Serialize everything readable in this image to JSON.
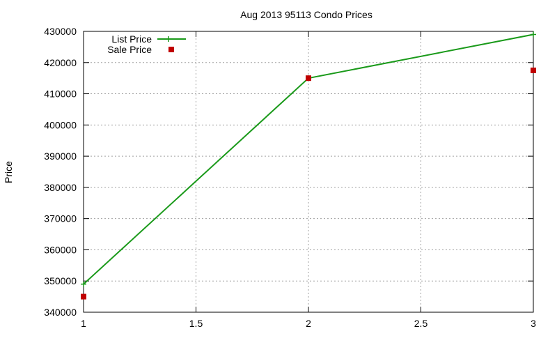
{
  "chart_data": {
    "type": "line",
    "title": "Aug 2013 95113 Condo Prices",
    "xlabel": "",
    "ylabel": "Price",
    "xlim": [
      1,
      3
    ],
    "ylim": [
      340000,
      430000
    ],
    "x_ticks": [
      1,
      1.5,
      2,
      2.5,
      3
    ],
    "x_tick_labels": [
      "1",
      "1.5",
      "2",
      "2.5",
      "3"
    ],
    "y_ticks": [
      340000,
      350000,
      360000,
      370000,
      380000,
      390000,
      400000,
      410000,
      420000,
      430000
    ],
    "y_tick_labels": [
      "340000",
      "350000",
      "360000",
      "370000",
      "380000",
      "390000",
      "400000",
      "410000",
      "420000",
      "430000"
    ],
    "grid": true,
    "legend_position": "top-left",
    "series": [
      {
        "name": "List Price",
        "style": "linespoints",
        "marker": "plus",
        "color": "#1a9a1a",
        "x": [
          1,
          2,
          3
        ],
        "y": [
          349000,
          415000,
          429000
        ]
      },
      {
        "name": "Sale Price",
        "style": "points",
        "marker": "square",
        "color": "#c00000",
        "x": [
          1,
          2,
          3
        ],
        "y": [
          345000,
          415000,
          417500
        ]
      }
    ]
  }
}
